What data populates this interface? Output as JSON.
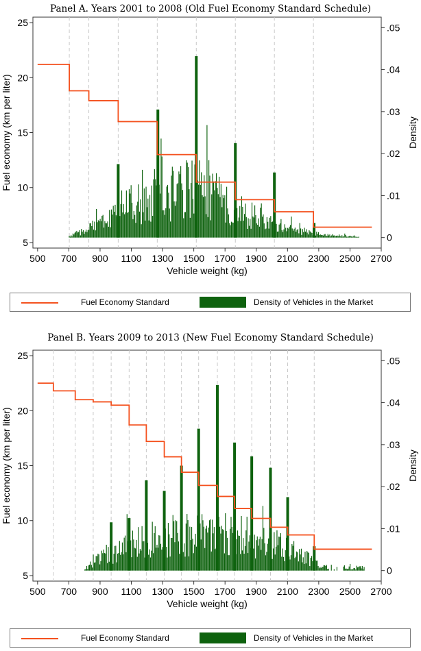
{
  "colors": {
    "standard": "#f4511e",
    "density": "#0e620e",
    "grid": "#c8c8c8",
    "axis": "#333333"
  },
  "legend": {
    "standard_label": "Fuel Economy Standard",
    "density_label": "Density of Vehicles in the Market"
  },
  "chart_data": [
    {
      "type": "bar+line",
      "title": "Panel A. Years 2001 to 2008 (Old Fuel Economy Standard Schedule)",
      "xlabel": "Vehicle weight (kg)",
      "ylabel": "Fuel economy (km per liter)",
      "y2label": "Density",
      "xlim": [
        470,
        2700
      ],
      "ylim": [
        4.5,
        25.5
      ],
      "y2lim": [
        -0.0025,
        0.0525
      ],
      "xticks": [
        "500",
        "700",
        "900",
        "1100",
        "1300",
        "1500",
        "1700",
        "1900",
        "2100",
        "2300",
        "2500",
        "2700"
      ],
      "yticks": [
        "5",
        "10",
        "15",
        "20",
        "25"
      ],
      "y2ticks": [
        "0",
        ".01",
        ".02",
        ".03",
        ".04",
        ".05"
      ],
      "grid": "vertical dashed lines at standard bracket boundaries",
      "bracket_boundaries": [
        703,
        828,
        1016,
        1266,
        1516,
        1766,
        2016,
        2266
      ],
      "standard_steps": [
        {
          "x0": 500,
          "x1": 703,
          "y": 21.2
        },
        {
          "x0": 703,
          "x1": 828,
          "y": 18.8
        },
        {
          "x0": 828,
          "x1": 1016,
          "y": 17.9
        },
        {
          "x0": 1016,
          "x1": 1266,
          "y": 16.0
        },
        {
          "x0": 1266,
          "x1": 1516,
          "y": 13.0
        },
        {
          "x0": 1516,
          "x1": 1766,
          "y": 10.5
        },
        {
          "x0": 1766,
          "x1": 2016,
          "y": 8.9
        },
        {
          "x0": 2016,
          "x1": 2266,
          "y": 7.8
        },
        {
          "x0": 2266,
          "x1": 2640,
          "y": 6.4
        }
      ],
      "density_peaks": [
        {
          "x": 1016,
          "y": 0.0175
        },
        {
          "x": 1270,
          "y": 0.0305
        },
        {
          "x": 1516,
          "y": 0.0432
        },
        {
          "x": 1766,
          "y": 0.0225
        },
        {
          "x": 2016,
          "y": 0.0155
        },
        {
          "x": 2270,
          "y": 0.0035
        }
      ],
      "density_envelope": [
        [
          700,
          0.0003
        ],
        [
          760,
          0.0012
        ],
        [
          850,
          0.0025
        ],
        [
          950,
          0.004
        ],
        [
          1000,
          0.0065
        ],
        [
          1100,
          0.008
        ],
        [
          1200,
          0.0085
        ],
        [
          1300,
          0.01
        ],
        [
          1400,
          0.0115
        ],
        [
          1500,
          0.012
        ],
        [
          1600,
          0.0105
        ],
        [
          1700,
          0.0085
        ],
        [
          1800,
          0.0065
        ],
        [
          1900,
          0.005
        ],
        [
          2000,
          0.0035
        ],
        [
          2100,
          0.0022
        ],
        [
          2200,
          0.0015
        ],
        [
          2300,
          0.0008
        ],
        [
          2400,
          0.0005
        ],
        [
          2560,
          0.0003
        ]
      ],
      "density_xrange": [
        700,
        2560
      ]
    },
    {
      "type": "bar+line",
      "title": "Panel B. Years 2009 to 2013 (New Fuel Economy Standard Schedule)",
      "xlabel": "Vehicle weight (kg)",
      "ylabel": "Fuel economy (km per liter)",
      "y2label": "Density",
      "xlim": [
        470,
        2700
      ],
      "ylim": [
        4.5,
        25.5
      ],
      "y2lim": [
        -0.0025,
        0.0525
      ],
      "xticks": [
        "500",
        "700",
        "900",
        "1100",
        "1300",
        "1500",
        "1700",
        "1900",
        "2100",
        "2300",
        "2500",
        "2700"
      ],
      "yticks": [
        "5",
        "10",
        "15",
        "20",
        "25"
      ],
      "y2ticks": [
        "0",
        ".01",
        ".02",
        ".03",
        ".04",
        ".05"
      ],
      "grid": "vertical dashed lines at standard bracket boundaries",
      "bracket_boundaries": [
        601,
        741,
        856,
        971,
        1086,
        1196,
        1311,
        1421,
        1531,
        1651,
        1761,
        1871,
        1991,
        2101,
        2271
      ],
      "standard_steps": [
        {
          "x0": 500,
          "x1": 601,
          "y": 22.5
        },
        {
          "x0": 601,
          "x1": 741,
          "y": 21.8
        },
        {
          "x0": 741,
          "x1": 856,
          "y": 21.0
        },
        {
          "x0": 856,
          "x1": 971,
          "y": 20.8
        },
        {
          "x0": 971,
          "x1": 1086,
          "y": 20.5
        },
        {
          "x0": 1086,
          "x1": 1196,
          "y": 18.7
        },
        {
          "x0": 1196,
          "x1": 1311,
          "y": 17.2
        },
        {
          "x0": 1311,
          "x1": 1421,
          "y": 15.8
        },
        {
          "x0": 1421,
          "x1": 1531,
          "y": 14.4
        },
        {
          "x0": 1531,
          "x1": 1651,
          "y": 13.2
        },
        {
          "x0": 1651,
          "x1": 1761,
          "y": 12.2
        },
        {
          "x0": 1761,
          "x1": 1871,
          "y": 11.1
        },
        {
          "x0": 1871,
          "x1": 1991,
          "y": 10.2
        },
        {
          "x0": 1991,
          "x1": 2101,
          "y": 9.4
        },
        {
          "x0": 2101,
          "x1": 2271,
          "y": 8.7
        },
        {
          "x0": 2271,
          "x1": 2640,
          "y": 7.4
        }
      ],
      "density_peaks": [
        {
          "x": 971,
          "y": 0.0115
        },
        {
          "x": 1086,
          "y": 0.0125
        },
        {
          "x": 1196,
          "y": 0.0215
        },
        {
          "x": 1311,
          "y": 0.019
        },
        {
          "x": 1421,
          "y": 0.025
        },
        {
          "x": 1531,
          "y": 0.0338
        },
        {
          "x": 1651,
          "y": 0.0442
        },
        {
          "x": 1761,
          "y": 0.0305
        },
        {
          "x": 1871,
          "y": 0.0272
        },
        {
          "x": 1991,
          "y": 0.0245
        },
        {
          "x": 2101,
          "y": 0.0175
        },
        {
          "x": 2271,
          "y": 0.0058
        }
      ],
      "density_envelope": [
        [
          800,
          0.0005
        ],
        [
          850,
          0.002
        ],
        [
          900,
          0.0035
        ],
        [
          1000,
          0.0045
        ],
        [
          1100,
          0.006
        ],
        [
          1200,
          0.0075
        ],
        [
          1300,
          0.0085
        ],
        [
          1400,
          0.009
        ],
        [
          1500,
          0.0095
        ],
        [
          1600,
          0.0095
        ],
        [
          1700,
          0.009
        ],
        [
          1800,
          0.0085
        ],
        [
          1900,
          0.0075
        ],
        [
          2000,
          0.0065
        ],
        [
          2100,
          0.005
        ],
        [
          2200,
          0.0035
        ],
        [
          2300,
          0.0015
        ],
        [
          2400,
          0.0008
        ],
        [
          2480,
          0.0008
        ],
        [
          2580,
          0.0007
        ]
      ],
      "density_xrange": [
        800,
        2590
      ]
    }
  ]
}
